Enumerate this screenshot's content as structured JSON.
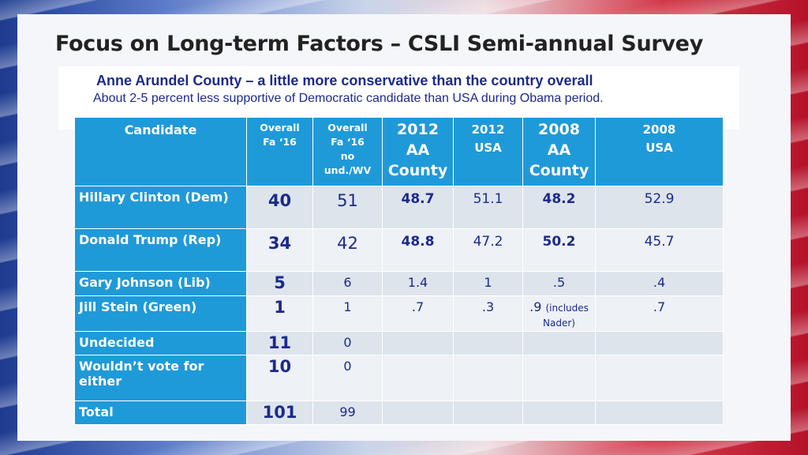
{
  "slide": {
    "title": "Focus on Long-term Factors – CSLI Semi-annual Survey",
    "subtitle": "Anne Arundel County – a little more conservative than the country overall",
    "note": "About 2-5 percent less supportive of Democratic candidate than USA during Obama period."
  },
  "table": {
    "headers": [
      "Candidate",
      "Overall\nFa ‘16",
      "Overall\nFa ‘16\nno\nund./WV",
      "2012\nAA\nCounty",
      "2012\nUSA",
      "2008\nAA\nCounty",
      "2008\nUSA"
    ],
    "rows": [
      {
        "candidate": "Hillary Clinton (Dem)",
        "values": [
          "40",
          "51",
          "48.7",
          "51.1",
          "48.2",
          "52.9"
        ]
      },
      {
        "candidate": "Donald Trump (Rep)",
        "values": [
          "34",
          "42",
          "48.8",
          "47.2",
          "50.2",
          "45.7"
        ]
      },
      {
        "candidate": "Gary Johnson (Lib)",
        "values": [
          "5",
          "6",
          "1.4",
          "1",
          ".5",
          ".4"
        ]
      },
      {
        "candidate": "Jill Stein (Green)",
        "values": [
          "1",
          "1",
          ".7",
          ".3",
          ".9",
          ".7"
        ],
        "note": "(includes\nNader)"
      },
      {
        "candidate": "Undecided",
        "values": [
          "11",
          "0",
          "",
          "",
          "",
          ""
        ]
      },
      {
        "candidate": "Wouldn’t vote for either",
        "values": [
          "10",
          "0",
          "",
          "",
          "",
          ""
        ]
      },
      {
        "candidate": "Total",
        "values": [
          "101",
          "99",
          "",
          "",
          "",
          ""
        ]
      }
    ]
  }
}
